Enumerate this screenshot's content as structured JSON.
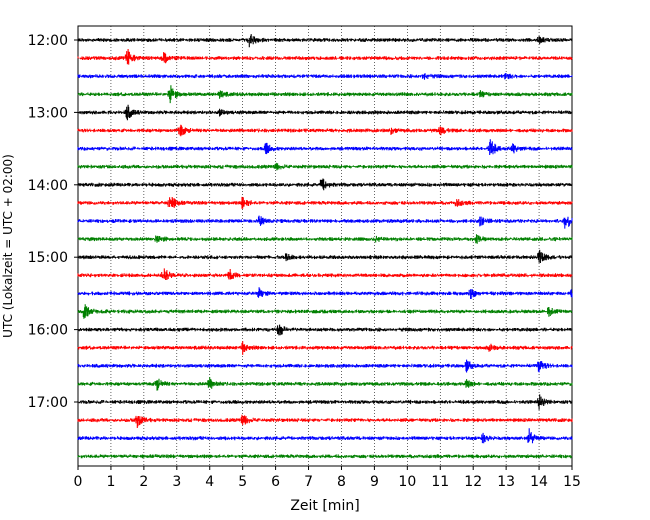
{
  "chart_data": {
    "type": "line",
    "title": "",
    "xlabel": "Zeit  [min]",
    "ylabel": "UTC (Lokalzeit = UTC + 02:00)",
    "xlim": [
      0,
      15
    ],
    "x_ticks": [
      0,
      1,
      2,
      3,
      4,
      5,
      6,
      7,
      8,
      9,
      10,
      11,
      12,
      13,
      14,
      15
    ],
    "y_ticks": [
      "12:00",
      "13:00",
      "14:00",
      "15:00",
      "16:00",
      "17:00"
    ],
    "grid": "vertical dotted at each minute",
    "trace_interval_min": 15,
    "trace_colors": [
      "#000000",
      "#ff0000",
      "#0000ff",
      "#008000"
    ],
    "traces": [
      {
        "start": "12:00",
        "events": [
          [
            5.2,
            0.9
          ],
          [
            14.0,
            0.3
          ]
        ]
      },
      {
        "start": "12:15",
        "events": [
          [
            1.5,
            1.0
          ],
          [
            2.6,
            0.6
          ]
        ]
      },
      {
        "start": "12:30",
        "events": [
          [
            10.5,
            0.4
          ],
          [
            13.0,
            0.3
          ]
        ]
      },
      {
        "start": "12:45",
        "events": [
          [
            2.8,
            1.0
          ],
          [
            4.3,
            0.4
          ],
          [
            12.2,
            0.3
          ]
        ]
      },
      {
        "start": "13:00",
        "events": [
          [
            1.5,
            0.8
          ],
          [
            4.3,
            0.3
          ]
        ]
      },
      {
        "start": "13:15",
        "events": [
          [
            3.1,
            0.7
          ],
          [
            11.0,
            0.5
          ],
          [
            9.5,
            0.3
          ]
        ]
      },
      {
        "start": "13:30",
        "events": [
          [
            5.7,
            0.6
          ],
          [
            12.5,
            1.2
          ],
          [
            13.2,
            0.5
          ]
        ]
      },
      {
        "start": "13:45",
        "events": [
          [
            6.0,
            0.3
          ]
        ]
      },
      {
        "start": "14:00",
        "events": [
          [
            7.4,
            0.8
          ]
        ]
      },
      {
        "start": "14:15",
        "events": [
          [
            2.8,
            1.0
          ],
          [
            5.0,
            0.8
          ],
          [
            11.5,
            0.4
          ]
        ]
      },
      {
        "start": "14:30",
        "events": [
          [
            5.5,
            0.6
          ],
          [
            12.2,
            0.5
          ],
          [
            14.8,
            1.1
          ]
        ]
      },
      {
        "start": "14:45",
        "events": [
          [
            2.4,
            0.5
          ],
          [
            9.0,
            0.3
          ],
          [
            12.1,
            0.4
          ]
        ]
      },
      {
        "start": "15:00",
        "events": [
          [
            14.0,
            0.8
          ],
          [
            6.3,
            0.3
          ]
        ]
      },
      {
        "start": "15:15",
        "events": [
          [
            2.6,
            0.8
          ],
          [
            4.6,
            0.6
          ]
        ]
      },
      {
        "start": "15:30",
        "events": [
          [
            5.5,
            0.6
          ],
          [
            11.9,
            0.6
          ],
          [
            15.0,
            0.5
          ]
        ]
      },
      {
        "start": "15:45",
        "events": [
          [
            0.2,
            0.9
          ],
          [
            14.3,
            0.5
          ]
        ]
      },
      {
        "start": "16:00",
        "events": [
          [
            6.1,
            0.8
          ]
        ]
      },
      {
        "start": "16:15",
        "events": [
          [
            5.0,
            0.6
          ],
          [
            12.5,
            0.4
          ]
        ]
      },
      {
        "start": "16:30",
        "events": [
          [
            11.8,
            0.6
          ],
          [
            14.0,
            0.8
          ]
        ]
      },
      {
        "start": "16:45",
        "events": [
          [
            2.4,
            0.6
          ],
          [
            4.0,
            0.6
          ],
          [
            11.8,
            0.4
          ]
        ]
      },
      {
        "start": "17:00",
        "events": [
          [
            14.0,
            0.8
          ]
        ]
      },
      {
        "start": "17:15",
        "events": [
          [
            1.8,
            0.9
          ],
          [
            5.0,
            0.6
          ]
        ]
      },
      {
        "start": "17:30",
        "events": [
          [
            12.3,
            0.5
          ],
          [
            13.7,
            0.9
          ]
        ]
      },
      {
        "start": "17:45",
        "events": []
      }
    ]
  }
}
